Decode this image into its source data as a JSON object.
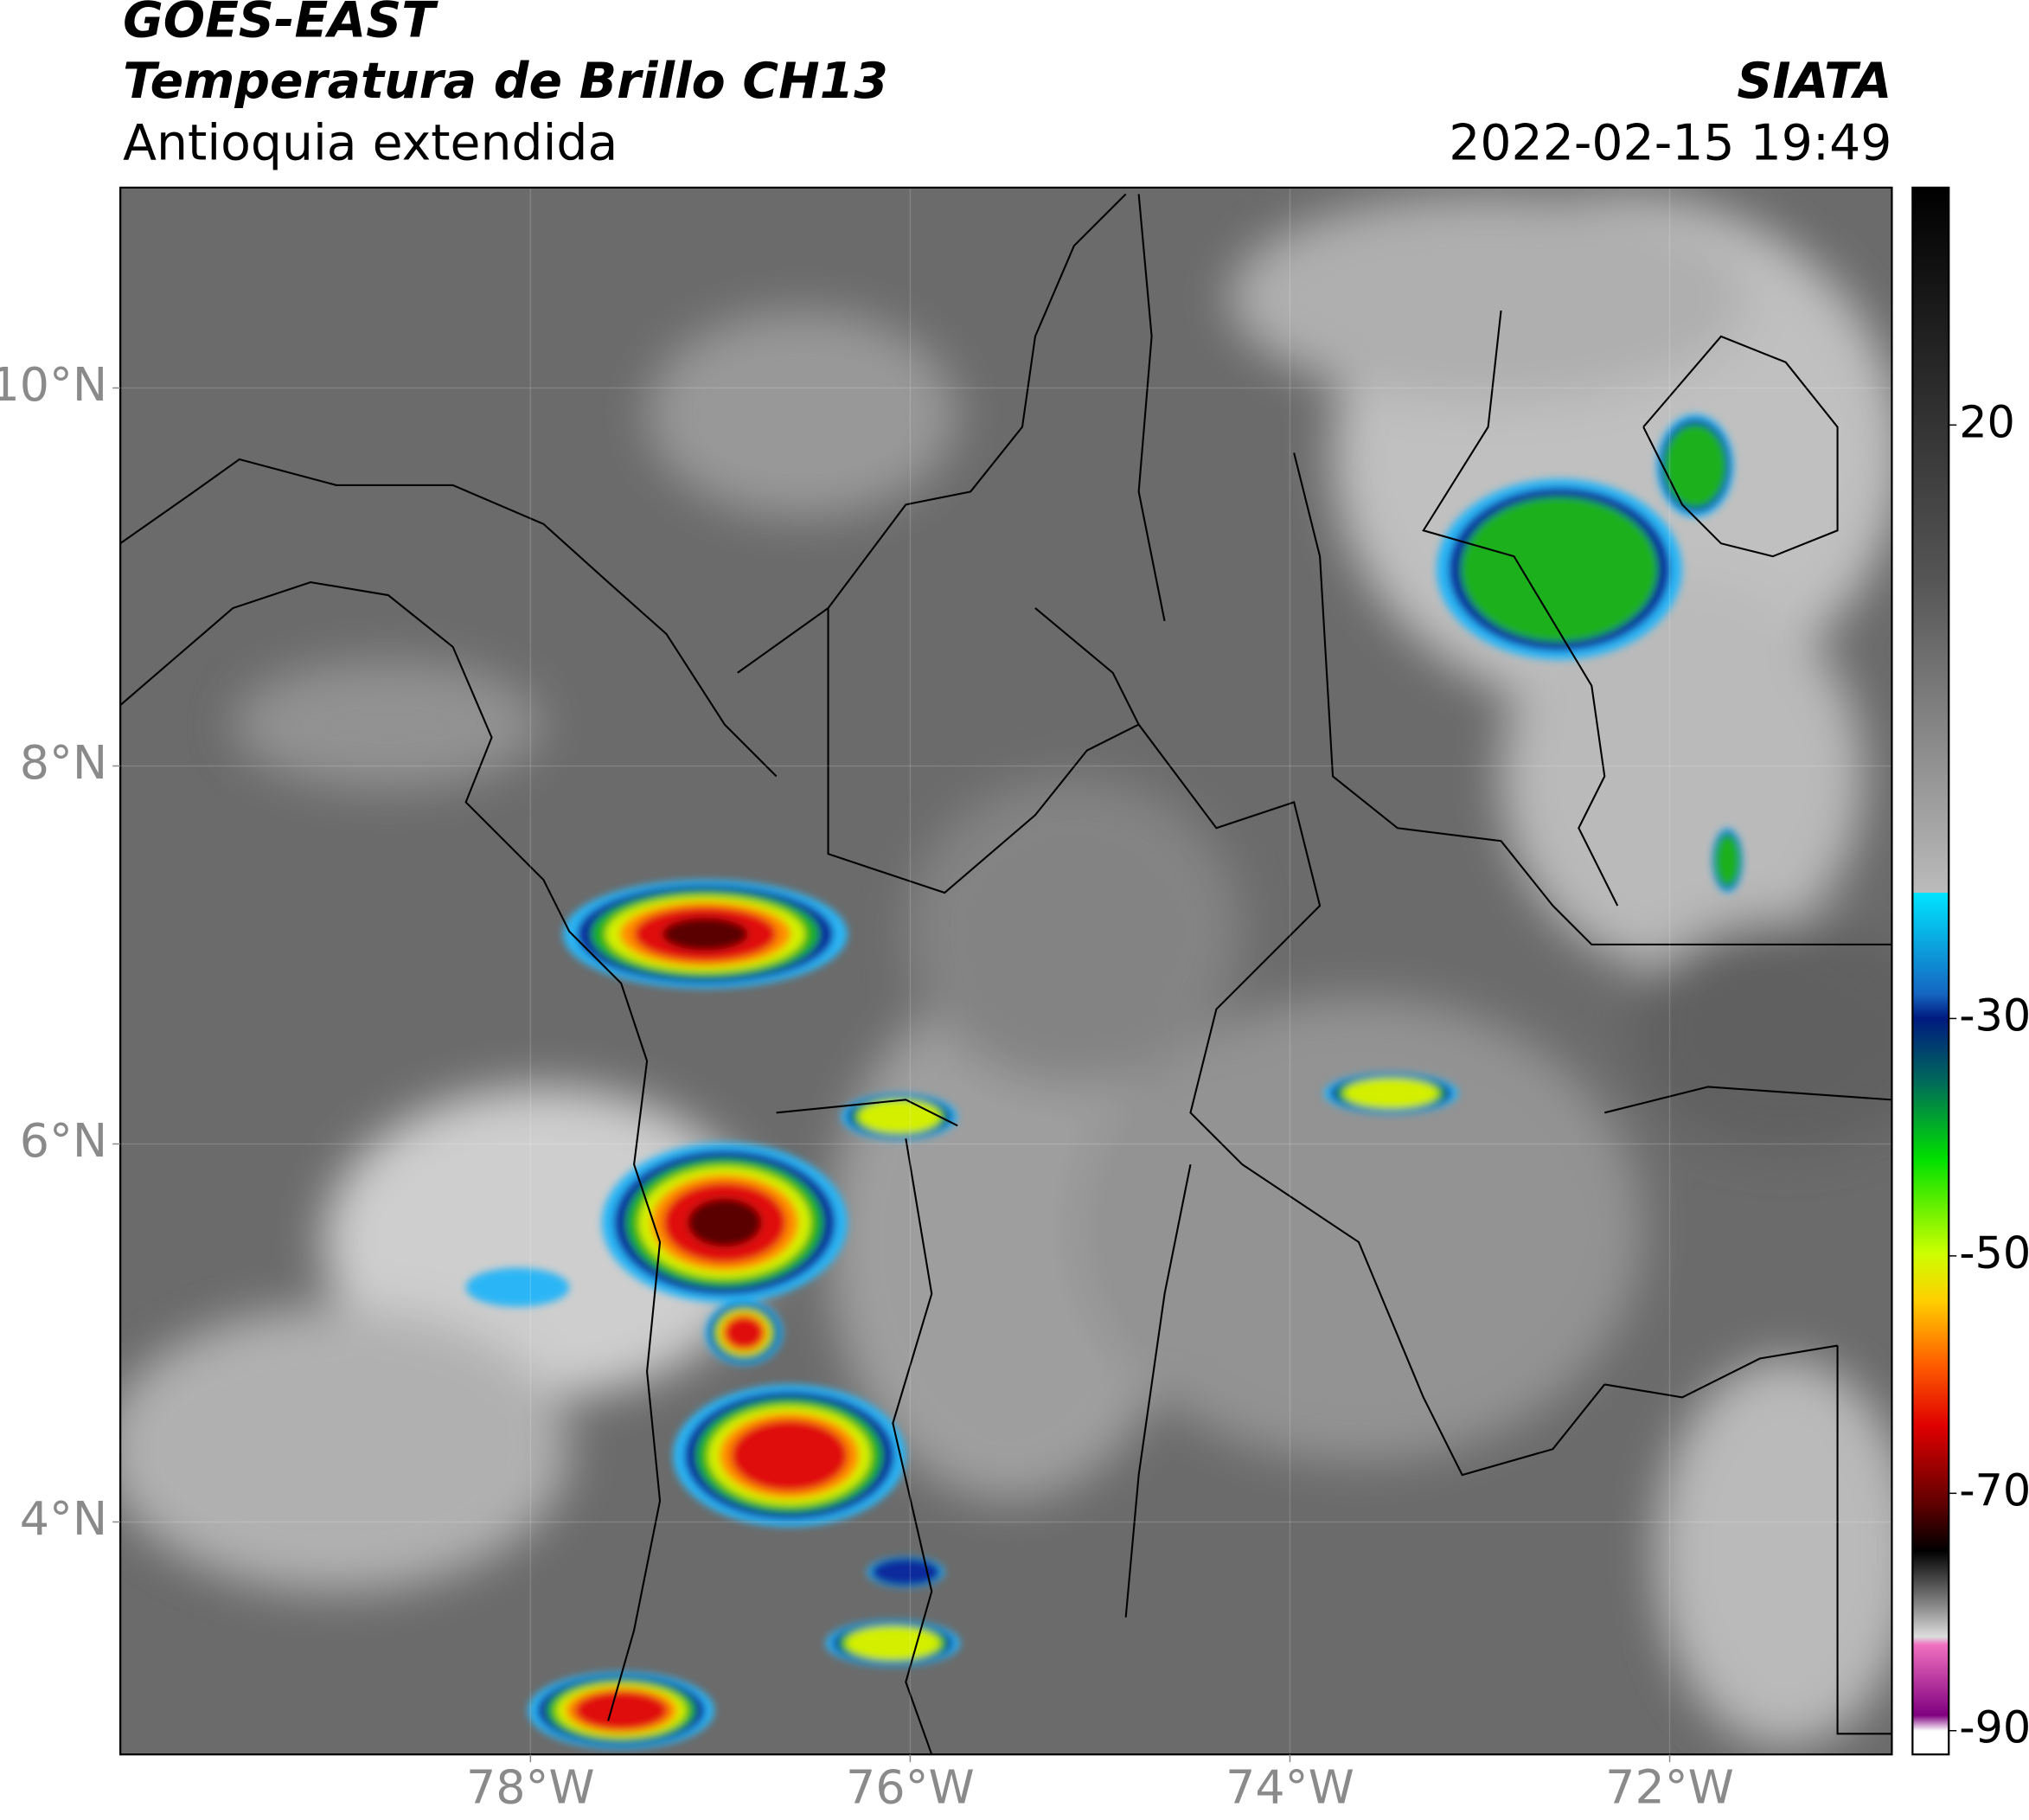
{
  "header": {
    "satellite": "GOES-EAST",
    "product": "Temperatura de Brillo CH13",
    "region": "Antioquia extendida",
    "agency": "SIATA",
    "datetime": "2022-02-15 19:49"
  },
  "map": {
    "lat_range": [
      2.77,
      11.06
    ],
    "lon_range": [
      -80.16,
      -70.83
    ],
    "lat_ticks": [
      {
        "value": 10,
        "label": "10°N"
      },
      {
        "value": 8,
        "label": "8°N"
      },
      {
        "value": 6,
        "label": "6°N"
      },
      {
        "value": 4,
        "label": "4°N"
      }
    ],
    "lon_ticks": [
      {
        "value": -78,
        "label": "78°W"
      },
      {
        "value": -76,
        "label": "76°W"
      },
      {
        "value": -74,
        "label": "74°W"
      },
      {
        "value": -72,
        "label": "72°W"
      }
    ],
    "colorbar": {
      "range": [
        -92,
        40
      ],
      "ticks": [
        20,
        -30,
        -50,
        -70,
        -90
      ]
    }
  }
}
